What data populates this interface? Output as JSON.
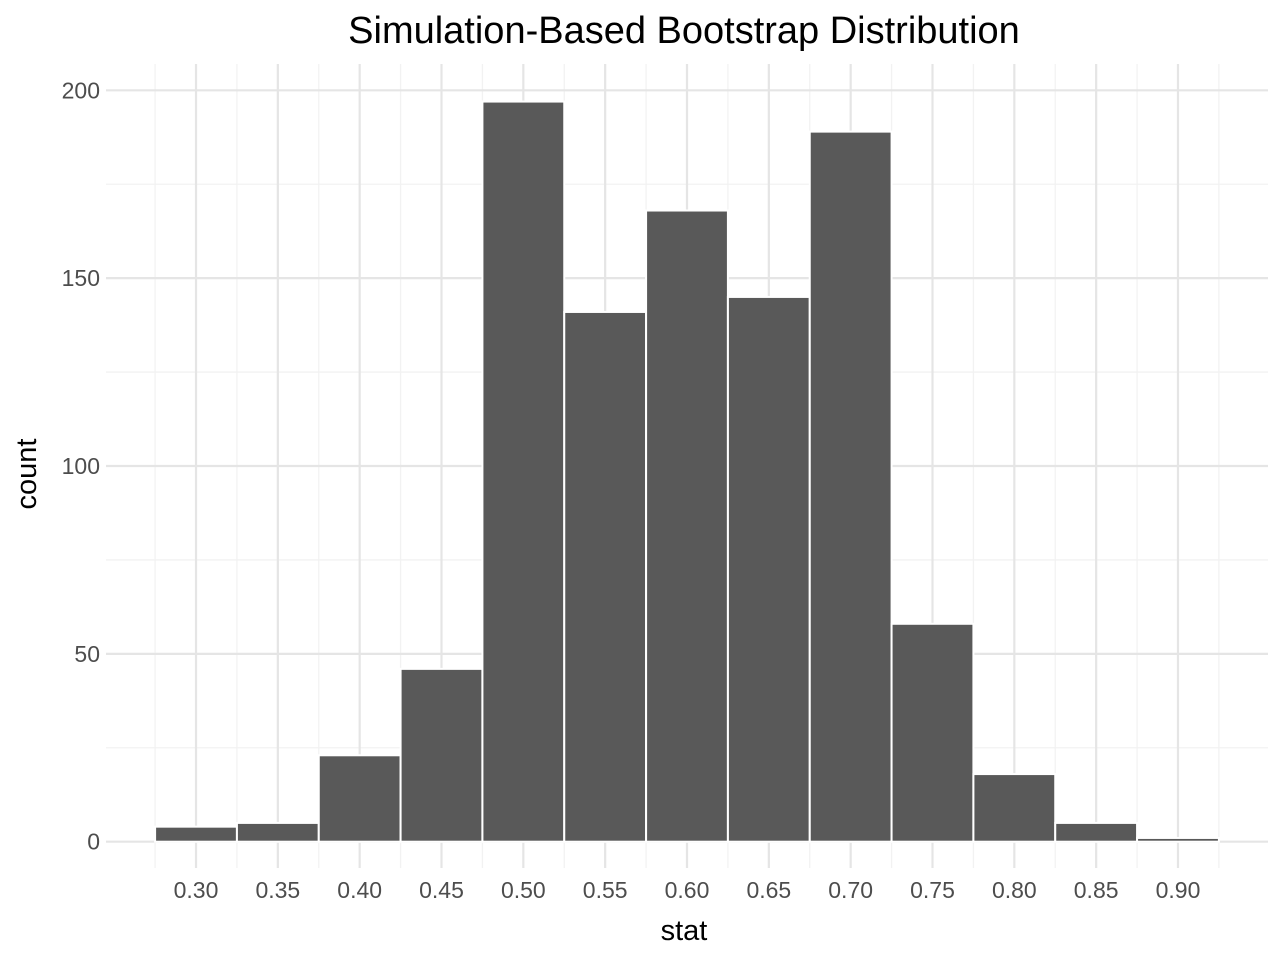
{
  "chart_data": {
    "type": "bar",
    "subtype": "histogram",
    "title": "Simulation-Based Bootstrap Distribution",
    "xlabel": "stat",
    "ylabel": "count",
    "bin_width": 0.05,
    "bins": [
      {
        "center": 0.3,
        "count": 4
      },
      {
        "center": 0.35,
        "count": 5
      },
      {
        "center": 0.4,
        "count": 23
      },
      {
        "center": 0.45,
        "count": 46
      },
      {
        "center": 0.5,
        "count": 197
      },
      {
        "center": 0.55,
        "count": 141
      },
      {
        "center": 0.6,
        "count": 168
      },
      {
        "center": 0.65,
        "count": 145
      },
      {
        "center": 0.7,
        "count": 189
      },
      {
        "center": 0.75,
        "count": 58
      },
      {
        "center": 0.8,
        "count": 18
      },
      {
        "center": 0.85,
        "count": 5
      },
      {
        "center": 0.9,
        "count": 1
      }
    ],
    "x_ticks": [
      "0.30",
      "0.35",
      "0.40",
      "0.45",
      "0.50",
      "0.55",
      "0.60",
      "0.65",
      "0.70",
      "0.75",
      "0.80",
      "0.85",
      "0.90"
    ],
    "y_ticks": [
      "0",
      "50",
      "100",
      "150",
      "200"
    ],
    "xlim": [
      0.245,
      0.955
    ],
    "ylim": [
      -7,
      207
    ],
    "grid": true,
    "colors": {
      "bar_fill": "#595959",
      "bar_edge": "#ffffff",
      "grid_major": "#e5e5e5",
      "grid_minor": "#f2f2f2",
      "background": "#ffffff"
    }
  }
}
